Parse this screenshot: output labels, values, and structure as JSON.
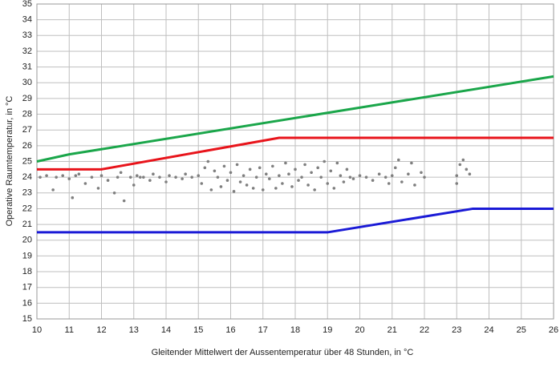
{
  "chart_data": {
    "type": "scatter",
    "y_label": "Operative Raumtemperatur, in °C",
    "x_label": "Gleitender Mittelwert der Aussentemperatur über 48 Stunden, in °C",
    "xlim": [
      10,
      26
    ],
    "ylim": [
      15,
      35
    ],
    "xticks": [
      10,
      11,
      12,
      13,
      14,
      15,
      16,
      17,
      18,
      19,
      20,
      21,
      22,
      23,
      24,
      25,
      26
    ],
    "yticks": [
      15,
      16,
      17,
      18,
      19,
      20,
      21,
      22,
      23,
      24,
      25,
      26,
      27,
      28,
      29,
      30,
      31,
      32,
      33,
      34,
      35
    ],
    "grid": true,
    "series": [
      {
        "type": "scatter",
        "color": "#7f7f7f",
        "x": [
          10.1,
          10.3,
          10.5,
          10.6,
          10.8,
          11.0,
          11.1,
          11.2,
          11.3,
          11.5,
          11.7,
          11.9,
          12.0,
          12.2,
          12.4,
          12.5,
          12.6,
          12.7,
          12.9,
          13.0,
          13.1,
          13.2,
          13.3,
          13.5,
          13.6,
          13.8,
          14.0,
          14.1,
          14.3,
          14.5,
          14.6,
          14.8,
          15.0,
          15.1,
          15.2,
          15.3,
          15.4,
          15.5,
          15.6,
          15.7,
          15.8,
          15.9,
          16.0,
          16.1,
          16.2,
          16.3,
          16.4,
          16.5,
          16.6,
          16.7,
          16.8,
          16.9,
          17.0,
          17.1,
          17.2,
          17.3,
          17.4,
          17.5,
          17.6,
          17.7,
          17.8,
          17.9,
          18.0,
          18.1,
          18.2,
          18.3,
          18.4,
          18.5,
          18.6,
          18.7,
          18.8,
          18.9,
          19.0,
          19.1,
          19.2,
          19.3,
          19.4,
          19.5,
          19.6,
          19.7,
          19.8,
          20.0,
          20.2,
          20.4,
          20.6,
          20.8,
          20.9,
          21.0,
          21.1,
          21.2,
          21.3,
          21.5,
          21.6,
          21.7,
          21.9,
          22.0,
          23.0,
          23.0,
          23.1,
          23.2,
          23.3,
          23.4
        ],
        "y": [
          24.0,
          24.1,
          23.2,
          24.0,
          24.1,
          23.9,
          22.7,
          24.1,
          24.2,
          23.6,
          24.0,
          23.3,
          24.1,
          23.8,
          23.0,
          24.0,
          24.3,
          22.5,
          24.0,
          23.5,
          24.1,
          24.0,
          24.0,
          23.8,
          24.2,
          24.0,
          23.7,
          24.1,
          24.0,
          23.9,
          24.2,
          24.0,
          24.1,
          23.6,
          24.6,
          25.0,
          23.2,
          24.4,
          24.0,
          23.4,
          24.7,
          23.8,
          24.3,
          23.1,
          24.8,
          23.7,
          24.1,
          23.5,
          24.5,
          23.3,
          24.0,
          24.6,
          23.2,
          24.2,
          23.9,
          24.7,
          23.3,
          24.1,
          23.6,
          24.9,
          24.2,
          23.4,
          24.5,
          23.8,
          24.0,
          24.8,
          23.5,
          24.3,
          23.2,
          24.6,
          24.0,
          25.0,
          23.6,
          24.4,
          23.3,
          24.9,
          24.1,
          23.7,
          24.5,
          24.0,
          23.9,
          24.1,
          24.0,
          23.8,
          24.2,
          24.0,
          23.6,
          24.1,
          24.6,
          25.1,
          23.7,
          24.2,
          24.9,
          23.5,
          24.3,
          24.0,
          24.1,
          23.6,
          24.8,
          25.1,
          24.5,
          24.2
        ]
      },
      {
        "type": "line",
        "color": "#1aa64a",
        "x": [
          10,
          11,
          26
        ],
        "y": [
          25,
          25.45,
          30.4
        ]
      },
      {
        "type": "line",
        "color": "#e8141b",
        "x": [
          10,
          12,
          17.5,
          26
        ],
        "y": [
          24.5,
          24.5,
          26.5,
          26.5
        ]
      },
      {
        "type": "line",
        "color": "#1a1ad6",
        "x": [
          10,
          19,
          23.5,
          26
        ],
        "y": [
          20.5,
          20.5,
          22,
          22
        ]
      }
    ]
  }
}
